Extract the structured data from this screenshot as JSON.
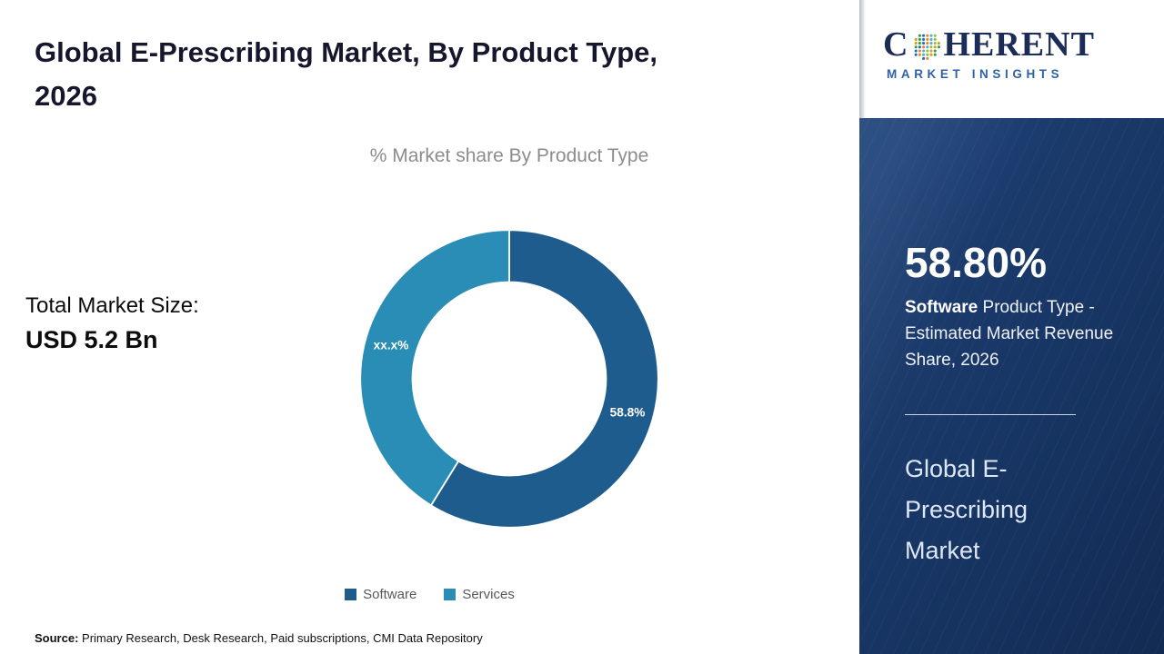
{
  "page": {
    "title_line1": "Global E-Prescribing Market, By Product Type,",
    "title_line2": "2026",
    "source_label": "Source:",
    "source_text": " Primary Research, Desk Research, Paid subscriptions, CMI Data Repository"
  },
  "left_panel": {
    "total_label": "Total Market Size:",
    "total_value": "USD 5.2 Bn"
  },
  "chart_data": {
    "type": "pie",
    "donut": true,
    "title": "% Market share By Product Type",
    "categories": [
      "Software",
      "Services"
    ],
    "values": [
      58.8,
      41.2
    ],
    "labels": [
      "58.8%",
      "xx.x%"
    ],
    "colors": [
      "#1f5c8e",
      "#2a8db5"
    ],
    "start_angle_deg": -90,
    "direction": "clockwise",
    "legend_position": "bottom"
  },
  "sidebar": {
    "logo": {
      "prefix": "C",
      "suffix": "HERENT",
      "subtitle": "MARKET INSIGHTS"
    },
    "stat_value": "58.80%",
    "stat_bold": "Software",
    "stat_rest": " Product Type - Estimated Market Revenue Share, 2026",
    "market_name": "Global E-Prescribing Market"
  }
}
